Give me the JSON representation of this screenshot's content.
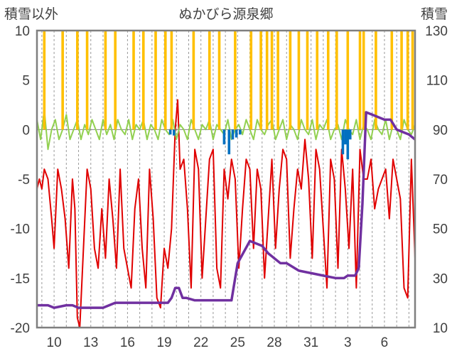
{
  "chart_data": {
    "type": "line",
    "title": "ぬかびら源泉郷",
    "y_left_label": "積雪以外",
    "y_right_label": "積雪",
    "y_left_range": [
      -20,
      10
    ],
    "y_right_range": [
      10,
      130
    ],
    "y_left_ticks": [
      "10",
      "5",
      "0",
      "-5",
      "-10",
      "-15",
      "-20"
    ],
    "y_right_ticks": [
      "130",
      "110",
      "90",
      "70",
      "50",
      "30",
      "10"
    ],
    "x_tick_labels": [
      "10",
      "13",
      "16",
      "19",
      "22",
      "25",
      "28",
      "31",
      "3",
      "6"
    ],
    "x_tick_days": [
      10,
      13,
      16,
      19,
      22,
      25,
      28,
      31,
      34,
      37
    ],
    "x_range": [
      8.6,
      39.5
    ],
    "grid": "vertical dashed",
    "series": [
      {
        "color": "#E00000",
        "axis": "left",
        "x": [
          8.6,
          8.8,
          9.0,
          9.2,
          9.5,
          9.8,
          10.0,
          10.3,
          10.6,
          10.9,
          11.2,
          11.5,
          11.7,
          11.9,
          12.1,
          12.4,
          12.7,
          13.0,
          13.3,
          13.6,
          13.9,
          14.2,
          14.5,
          14.8,
          15.1,
          15.4,
          15.7,
          16.0,
          16.3,
          16.6,
          16.9,
          17.2,
          17.5,
          17.8,
          18.1,
          18.4,
          18.7,
          19.0,
          19.3,
          19.6,
          19.9,
          20.1,
          20.3,
          20.6,
          20.9,
          21.2,
          21.5,
          21.8,
          22.1,
          22.4,
          22.7,
          23.0,
          23.3,
          23.6,
          23.9,
          24.2,
          24.5,
          24.8,
          25.1,
          25.4,
          25.7,
          26.0,
          26.3,
          26.6,
          26.9,
          27.2,
          27.5,
          27.8,
          28.1,
          28.4,
          28.7,
          29.0,
          29.3,
          29.6,
          29.9,
          30.2,
          30.5,
          30.8,
          31.1,
          31.4,
          31.7,
          32.0,
          32.3,
          32.6,
          32.9,
          33.2,
          33.5,
          33.8,
          34.1,
          34.4,
          34.7,
          35.0,
          35.3,
          35.6,
          35.9,
          36.2,
          36.5,
          36.8,
          37.1,
          37.4,
          37.7,
          38.0,
          38.3,
          38.6,
          38.9,
          39.2,
          39.5
        ],
        "values": [
          -6,
          -5,
          -6,
          -4,
          -5,
          -9,
          -12,
          -4,
          -6,
          -9,
          -14,
          -5,
          -8,
          -19,
          -20,
          -12,
          -4,
          -6,
          -12,
          -14,
          -8,
          -13,
          -5,
          -9,
          -14,
          -4,
          -12,
          -14,
          -16,
          -8,
          -5,
          -12,
          -16,
          -4,
          -9,
          -17,
          -18,
          -12,
          -14,
          -10,
          0,
          3,
          -4,
          -3,
          -8,
          -16,
          -2,
          -4,
          -15,
          -9,
          -3,
          -2,
          -14,
          -16,
          -4,
          -7,
          -3,
          -5,
          -14,
          -8,
          -3,
          -4,
          -12,
          -4,
          -6,
          -15,
          -9,
          -3,
          -12,
          -6,
          -2,
          -3,
          -13,
          -8,
          -4,
          -6,
          -1,
          -5,
          -13,
          -2,
          -4,
          -10,
          -16,
          -3,
          -5,
          -14,
          -2,
          -6,
          -12,
          -4,
          -16,
          -2,
          -5,
          -5,
          -3,
          -8,
          -6,
          -5,
          -4,
          -9,
          -3,
          -5,
          -7,
          -16,
          -17,
          -3,
          -13
        ]
      },
      {
        "color": "#92D050",
        "axis": "left",
        "x": [
          8.6,
          8.9,
          9.2,
          9.5,
          9.8,
          10.1,
          10.4,
          10.7,
          11.0,
          11.3,
          11.6,
          11.9,
          12.2,
          12.5,
          12.8,
          13.1,
          13.4,
          13.7,
          14.0,
          14.3,
          14.6,
          14.9,
          15.2,
          15.5,
          15.8,
          16.1,
          16.4,
          16.7,
          17.0,
          17.3,
          17.6,
          17.9,
          18.2,
          18.5,
          18.8,
          19.1,
          19.4,
          19.7,
          20.0,
          20.3,
          20.6,
          20.9,
          21.2,
          21.5,
          21.8,
          22.1,
          22.4,
          22.7,
          23.0,
          23.3,
          23.6,
          23.9,
          24.2,
          24.5,
          24.8,
          25.1,
          25.4,
          25.7,
          26.0,
          26.3,
          26.6,
          26.9,
          27.2,
          27.5,
          27.8,
          28.1,
          28.4,
          28.7,
          29.0,
          29.3,
          29.6,
          29.9,
          30.2,
          30.5,
          30.8,
          31.1,
          31.4,
          31.7,
          32.0,
          32.3,
          32.6,
          32.9,
          33.2,
          33.5,
          33.8,
          34.1,
          34.4,
          34.7,
          35.0,
          35.3,
          35.6,
          35.9,
          36.2,
          36.5,
          36.8,
          37.1,
          37.4,
          37.7,
          38.0,
          38.3,
          38.6,
          38.9,
          39.2,
          39.5
        ],
        "values": [
          1,
          -1,
          2,
          -2,
          0,
          1,
          -1,
          0,
          1.5,
          -1,
          0,
          1,
          -1,
          0.5,
          -0.5,
          1,
          0,
          -1,
          1,
          -0.5,
          0.5,
          -1,
          1,
          0,
          -0.5,
          1,
          -1,
          0.5,
          0,
          1,
          -1,
          0.5,
          0,
          -1,
          1,
          0,
          -0.5,
          1,
          -1,
          0.5,
          0,
          -1,
          1,
          0,
          -1,
          0.5,
          0,
          1,
          -1,
          0.5,
          0,
          -0.5,
          1,
          -1,
          0,
          0.5,
          -0.5,
          1,
          0,
          -1,
          1,
          0,
          -0.5,
          0.5,
          1,
          -1,
          0,
          1,
          -1,
          0.5,
          0,
          -1,
          1,
          0,
          -0.5,
          1,
          -1,
          0.5,
          0,
          1,
          -1,
          0,
          0.5,
          -1,
          1,
          0,
          -0.5,
          1,
          -1,
          0.5,
          0,
          -1,
          1,
          0,
          -0.5,
          1,
          -1,
          0.5,
          0,
          -1,
          1,
          0,
          -0.5,
          0.5
        ]
      },
      {
        "color": "#FFC000",
        "axis": "left",
        "type": "bar",
        "x": [
          9.2,
          10.7,
          11.9,
          12.7,
          14.2,
          15.0,
          16.5,
          17.3,
          18.3,
          19.1,
          19.6,
          21.4,
          22.7,
          23.5,
          24.8,
          26.1,
          26.9,
          27.4,
          27.8,
          28.3,
          29.3,
          30.0,
          30.7,
          31.5,
          32.4,
          33.1,
          34.0,
          35.0,
          35.3,
          36.3,
          37.6,
          38.4,
          38.9,
          39.3
        ],
        "values": [
          10,
          10,
          10,
          10,
          10,
          10,
          10,
          10,
          10,
          10,
          10,
          10,
          10,
          10,
          10,
          10,
          10,
          10,
          10,
          10,
          10,
          10,
          10,
          10,
          10,
          10,
          10,
          10,
          10,
          10,
          10,
          10,
          10,
          10
        ]
      },
      {
        "color": "#0070C0",
        "axis": "left",
        "type": "bar",
        "x": [
          19.5,
          19.8,
          23.9,
          24.3,
          24.6,
          24.9,
          25.2,
          33.6,
          33.8,
          34.0,
          34.2
        ],
        "values": [
          -0.5,
          -0.6,
          -1.5,
          -2.5,
          -1.0,
          -0.8,
          -0.5,
          -2.5,
          -1.5,
          -3,
          -1
        ]
      },
      {
        "color": "#7030A0",
        "axis": "right",
        "x": [
          8.6,
          9.5,
          10.0,
          11.0,
          11.5,
          12.0,
          13.5,
          14.0,
          14.5,
          15.0,
          16.0,
          17.0,
          18.0,
          19.0,
          19.3,
          19.6,
          19.9,
          20.2,
          20.5,
          20.8,
          21.5,
          22.0,
          22.5,
          23.2,
          23.5,
          23.8,
          24.5,
          25.0,
          26.0,
          27.0,
          27.5,
          28.0,
          28.5,
          29.0,
          30.0,
          31.0,
          32.0,
          33.0,
          33.5,
          33.7,
          34.0,
          34.3,
          34.6,
          34.9,
          35.2,
          35.5,
          36.0,
          37.0,
          37.5,
          38.0,
          39.0,
          39.5
        ],
        "values": [
          19,
          19,
          18,
          19,
          19,
          18,
          18,
          18,
          19,
          20,
          20,
          20,
          20,
          20,
          20,
          22,
          26,
          26,
          22,
          22,
          21,
          21,
          21,
          21,
          21,
          21,
          21,
          36,
          45,
          43,
          40,
          38,
          36,
          36,
          33,
          32,
          31,
          30,
          30,
          30,
          31,
          31,
          31,
          34,
          60,
          97,
          96,
          94,
          94,
          90,
          88,
          86
        ]
      }
    ]
  }
}
